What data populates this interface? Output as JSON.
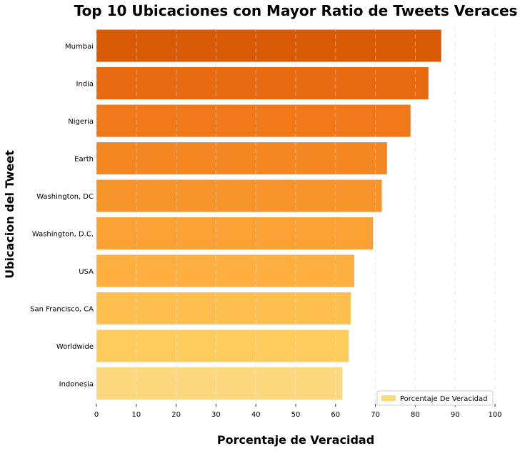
{
  "chart_data": {
    "type": "bar",
    "orientation": "horizontal",
    "title": "Top 10 Ubicaciones con Mayor Ratio de Tweets Veraces",
    "xlabel": "Porcentaje de Veracidad",
    "ylabel": "Ubicacion del Tweet",
    "xlim": [
      0,
      100
    ],
    "xticks": [
      0,
      10,
      20,
      30,
      40,
      50,
      60,
      70,
      80,
      90,
      100
    ],
    "grid": "vertical dashed",
    "legend_position": "bottom-right",
    "categories": [
      "Mumbai",
      "India",
      "Nigeria",
      "Earth",
      "Washington, DC",
      "Washington, D.C.",
      "USA",
      "San Francisco, CA",
      "Worldwide",
      "Indonesia"
    ],
    "series": [
      {
        "name": "Porcentaje De Veracidad",
        "values": [
          86.5,
          83.3,
          78.8,
          72.9,
          71.6,
          69.4,
          64.7,
          63.8,
          63.3,
          61.7
        ]
      }
    ],
    "colors": [
      "#d95a05",
      "#e86a10",
      "#f07819",
      "#f48722",
      "#f7932b",
      "#fba035",
      "#feaf40",
      "#febf4f",
      "#fecb5d",
      "#fed87e"
    ],
    "legend_color": "#fed87e"
  }
}
